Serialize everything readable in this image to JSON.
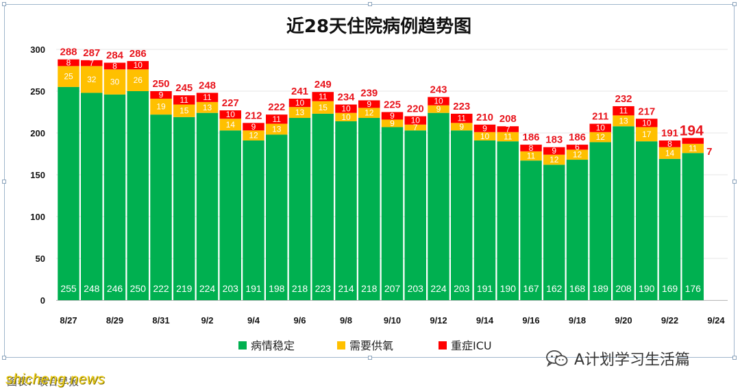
{
  "chart_data": {
    "type": "bar",
    "stacked": true,
    "title": "近28天住院病例趋势图",
    "categories": [
      "8/27",
      "8/28",
      "8/29",
      "8/30",
      "8/31",
      "9/1",
      "9/2",
      "9/3",
      "9/4",
      "9/5",
      "9/6",
      "9/7",
      "9/8",
      "9/9",
      "9/10",
      "9/11",
      "9/12",
      "9/13",
      "9/14",
      "9/15",
      "9/16",
      "9/17",
      "9/18",
      "9/19",
      "9/20",
      "9/21",
      "9/22",
      "9/23"
    ],
    "x_tick_labels": [
      "8/27",
      "8/29",
      "8/31",
      "9/2",
      "9/4",
      "9/6",
      "9/8",
      "9/10",
      "9/12",
      "9/14",
      "9/16",
      "9/18",
      "9/20",
      "9/22",
      "9/24"
    ],
    "series": [
      {
        "name": "病情稳定",
        "color": "#00b050",
        "values": [
          255,
          248,
          246,
          250,
          222,
          219,
          224,
          203,
          191,
          198,
          218,
          223,
          214,
          218,
          207,
          203,
          224,
          203,
          191,
          190,
          167,
          162,
          168,
          189,
          208,
          190,
          169,
          176
        ]
      },
      {
        "name": "需要供氧",
        "color": "#ffc000",
        "values": [
          25,
          32,
          30,
          26,
          19,
          15,
          13,
          14,
          12,
          13,
          13,
          15,
          10,
          12,
          9,
          7,
          9,
          9,
          10,
          11,
          11,
          12,
          12,
          12,
          13,
          17,
          14,
          11
        ]
      },
      {
        "name": "重症ICU",
        "color": "#ff0000",
        "values": [
          8,
          7,
          8,
          10,
          9,
          11,
          11,
          10,
          9,
          11,
          10,
          11,
          10,
          9,
          9,
          10,
          10,
          11,
          9,
          7,
          8,
          9,
          6,
          10,
          11,
          10,
          8,
          7
        ]
      }
    ],
    "totals": [
      288,
      287,
      284,
      286,
      250,
      245,
      248,
      227,
      212,
      222,
      241,
      249,
      234,
      239,
      225,
      220,
      243,
      223,
      210,
      208,
      186,
      183,
      186,
      211,
      232,
      217,
      191,
      194
    ],
    "ylim": [
      0,
      300
    ],
    "y_ticks": [
      0,
      50,
      100,
      150,
      200,
      250,
      300
    ],
    "grid": true,
    "legend": "bottom",
    "xlabel": "",
    "ylabel": ""
  },
  "watermark": {
    "icon": "wechat-icon",
    "text": "A计划学习生活篇"
  },
  "footer": {
    "site_stamp": "shicheng.news",
    "caption": "图表：联合早报"
  }
}
